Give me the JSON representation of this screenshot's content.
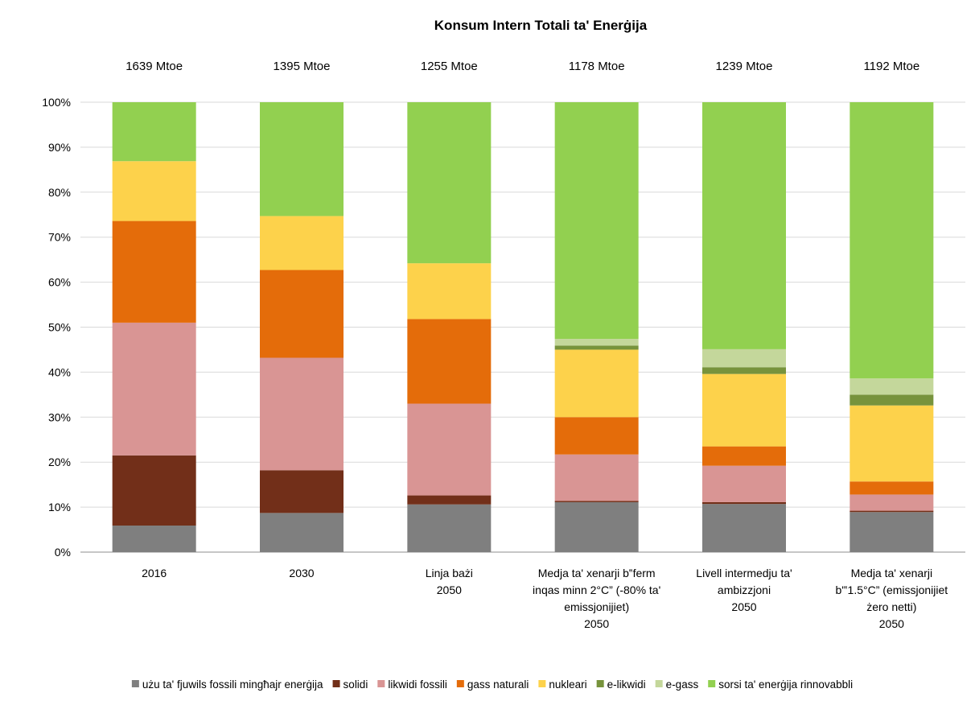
{
  "chart_data": {
    "type": "bar",
    "stacked": true,
    "title": "Konsum Intern Totali ta' Enerġija",
    "xlabel": "",
    "ylabel": "",
    "ylim": [
      0,
      100
    ],
    "y_ticks": [
      "0%",
      "10%",
      "20%",
      "30%",
      "40%",
      "50%",
      "60%",
      "70%",
      "80%",
      "90%",
      "100%"
    ],
    "grid": true,
    "legend_position": "bottom",
    "totals": [
      "1639 Mtoe",
      "1395 Mtoe",
      "1255 Mtoe",
      "1178 Mtoe",
      "1239 Mtoe",
      "1192 Mtoe"
    ],
    "categories": [
      [
        "2016"
      ],
      [
        "2030"
      ],
      [
        "Linja bażi",
        "2050"
      ],
      [
        "Medja ta' xenarji b‟ferm",
        "inqas minn 2°C” (-80% ta'",
        "emissjonijiet)",
        "2050"
      ],
      [
        "Livell intermedju ta'",
        "ambizzjoni",
        "2050"
      ],
      [
        "Medja ta' xenarji",
        "b'‟1.5°C” (emissjonijiet",
        "żero netti)",
        "2050"
      ]
    ],
    "series": [
      {
        "name": "użu ta' fjuwils fossili mingħajr enerġija",
        "color": "#7f7f7f",
        "values": [
          5.9,
          8.7,
          10.6,
          11.1,
          10.7,
          8.9
        ]
      },
      {
        "name": "solidi",
        "color": "#722f19",
        "values": [
          15.6,
          9.5,
          2.0,
          0.3,
          0.4,
          0.3
        ]
      },
      {
        "name": "likwidi fossili",
        "color": "#d99594",
        "values": [
          29.5,
          25.0,
          20.4,
          10.3,
          8.1,
          3.6
        ]
      },
      {
        "name": "gass naturali",
        "color": "#e46c0a",
        "values": [
          22.6,
          19.5,
          18.8,
          8.3,
          4.3,
          2.9
        ]
      },
      {
        "name": "nukleari",
        "color": "#fdd24b",
        "values": [
          13.3,
          12.0,
          12.4,
          15.0,
          16.1,
          16.9
        ]
      },
      {
        "name": "e-likwidi",
        "color": "#77933c",
        "values": [
          0,
          0,
          0,
          0.9,
          1.5,
          2.4
        ]
      },
      {
        "name": "e-gass",
        "color": "#c4d79b",
        "values": [
          0,
          0,
          0,
          1.5,
          4.0,
          3.6
        ]
      },
      {
        "name": "sorsi ta' enerġija rinnovabbli",
        "color": "#92d050",
        "values": [
          13.1,
          25.3,
          35.8,
          52.6,
          54.9,
          61.4
        ]
      }
    ]
  }
}
